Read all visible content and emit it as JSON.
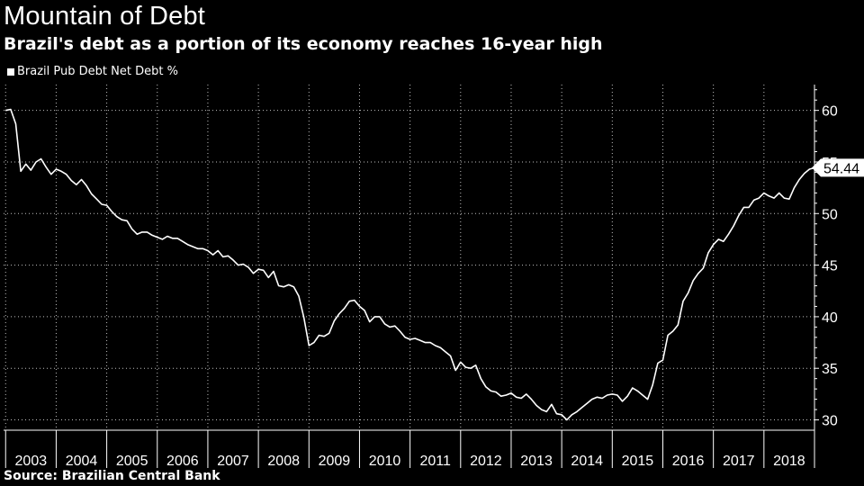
{
  "header": {
    "title": "Mountain of Debt",
    "subtitle": "Brazil's debt as a portion of its economy reaches 16-year high"
  },
  "legend": {
    "label": "Brazil Pub Debt Net Debt %"
  },
  "footer": {
    "source": "Source: Brazilian Central Bank"
  },
  "colors": {
    "background": "#000000",
    "line": "#ffffff",
    "grid": "#ffffff"
  },
  "chart_data": {
    "type": "line",
    "title": "Mountain of Debt",
    "subtitle": "Brazil's debt as a portion of its economy reaches 16-year high",
    "xlabel": "",
    "ylabel": "",
    "xlim": [
      2002.96,
      2019.0
    ],
    "ylim": [
      29,
      62.5
    ],
    "y_ticks": [
      30,
      35,
      40,
      45,
      50,
      55,
      60
    ],
    "x_tick_labels": [
      "2003",
      "2004",
      "2005",
      "2006",
      "2007",
      "2008",
      "2009",
      "2010",
      "2011",
      "2012",
      "2013",
      "2014",
      "2015",
      "2016",
      "2017",
      "2018"
    ],
    "grid": true,
    "last_value_label": "54.44",
    "series": [
      {
        "name": "Brazil Pub Debt Net Debt %",
        "x": [
          2003.0,
          2003.1,
          2003.2,
          2003.3,
          2003.4,
          2003.5,
          2003.6,
          2003.7,
          2003.8,
          2003.9,
          2004.0,
          2004.1,
          2004.2,
          2004.3,
          2004.4,
          2004.5,
          2004.6,
          2004.7,
          2004.8,
          2004.9,
          2005.0,
          2005.1,
          2005.2,
          2005.3,
          2005.4,
          2005.5,
          2005.6,
          2005.7,
          2005.8,
          2005.9,
          2006.0,
          2006.1,
          2006.2,
          2006.3,
          2006.4,
          2006.5,
          2006.6,
          2006.7,
          2006.8,
          2006.9,
          2007.0,
          2007.1,
          2007.2,
          2007.3,
          2007.4,
          2007.5,
          2007.6,
          2007.7,
          2007.8,
          2007.9,
          2008.0,
          2008.1,
          2008.2,
          2008.3,
          2008.4,
          2008.5,
          2008.6,
          2008.7,
          2008.8,
          2008.9,
          2009.0,
          2009.1,
          2009.2,
          2009.3,
          2009.4,
          2009.5,
          2009.6,
          2009.7,
          2009.8,
          2009.9,
          2010.0,
          2010.1,
          2010.2,
          2010.3,
          2010.4,
          2010.5,
          2010.6,
          2010.7,
          2010.8,
          2010.9,
          2011.0,
          2011.1,
          2011.2,
          2011.3,
          2011.4,
          2011.5,
          2011.6,
          2011.7,
          2011.8,
          2011.9,
          2012.0,
          2012.1,
          2012.2,
          2012.3,
          2012.4,
          2012.5,
          2012.6,
          2012.7,
          2012.8,
          2012.9,
          2013.0,
          2013.1,
          2013.2,
          2013.3,
          2013.4,
          2013.5,
          2013.6,
          2013.7,
          2013.8,
          2013.9,
          2014.0,
          2014.1,
          2014.2,
          2014.3,
          2014.4,
          2014.5,
          2014.6,
          2014.7,
          2014.8,
          2014.9,
          2015.0,
          2015.1,
          2015.2,
          2015.3,
          2015.4,
          2015.5,
          2015.6,
          2015.7,
          2015.8,
          2015.9,
          2016.0,
          2016.1,
          2016.2,
          2016.3,
          2016.4,
          2016.5,
          2016.6,
          2016.7,
          2016.8,
          2016.9,
          2017.0,
          2017.1,
          2017.2,
          2017.3,
          2017.4,
          2017.5,
          2017.6,
          2017.7,
          2017.8,
          2017.9,
          2018.0,
          2018.1,
          2018.2,
          2018.3,
          2018.4,
          2018.5,
          2018.6,
          2018.7,
          2018.8,
          2018.9,
          2019.0
        ],
        "values": [
          60.0,
          60.1,
          58.7,
          54.1,
          54.8,
          54.2,
          55.0,
          55.3,
          54.5,
          53.8,
          54.3,
          54.1,
          53.8,
          53.2,
          52.8,
          53.3,
          52.7,
          51.9,
          51.4,
          50.9,
          50.8,
          50.2,
          49.7,
          49.4,
          49.3,
          48.5,
          48.0,
          48.2,
          48.2,
          47.9,
          47.7,
          47.5,
          47.8,
          47.6,
          47.6,
          47.3,
          47.0,
          46.8,
          46.6,
          46.6,
          46.4,
          46.0,
          46.4,
          45.8,
          45.9,
          45.5,
          45.0,
          45.1,
          44.8,
          44.2,
          44.6,
          44.5,
          43.8,
          44.4,
          43.0,
          42.9,
          43.1,
          42.9,
          42.0,
          39.9,
          37.2,
          37.5,
          38.2,
          38.1,
          38.4,
          39.6,
          40.3,
          40.8,
          41.5,
          41.6,
          41.0,
          40.6,
          39.5,
          40.0,
          40.0,
          39.3,
          39.0,
          39.1,
          38.6,
          38.0,
          37.8,
          37.9,
          37.7,
          37.5,
          37.5,
          37.2,
          37.0,
          36.6,
          36.2,
          34.8,
          35.6,
          35.1,
          35.0,
          35.3,
          34.0,
          33.2,
          32.8,
          32.7,
          32.3,
          32.4,
          32.6,
          32.2,
          32.1,
          32.5,
          32.0,
          31.4,
          31.0,
          30.8,
          31.5,
          30.6,
          30.5,
          30.0,
          30.5,
          30.8,
          31.2,
          31.6,
          32.0,
          32.2,
          32.1,
          32.4,
          32.5,
          32.4,
          31.8,
          32.3,
          33.1,
          32.8,
          32.4,
          32.0,
          33.4,
          35.5,
          35.8,
          38.2,
          38.6,
          39.2,
          41.5,
          42.3,
          43.5,
          44.2,
          44.7,
          46.2,
          47.0,
          47.5,
          47.3,
          48.0,
          48.8,
          49.8,
          50.6,
          50.6,
          51.3,
          51.5,
          52.0,
          51.7,
          51.5,
          52.0,
          51.5,
          51.4,
          52.5,
          53.3,
          53.9,
          54.3,
          54.44
        ]
      }
    ]
  }
}
